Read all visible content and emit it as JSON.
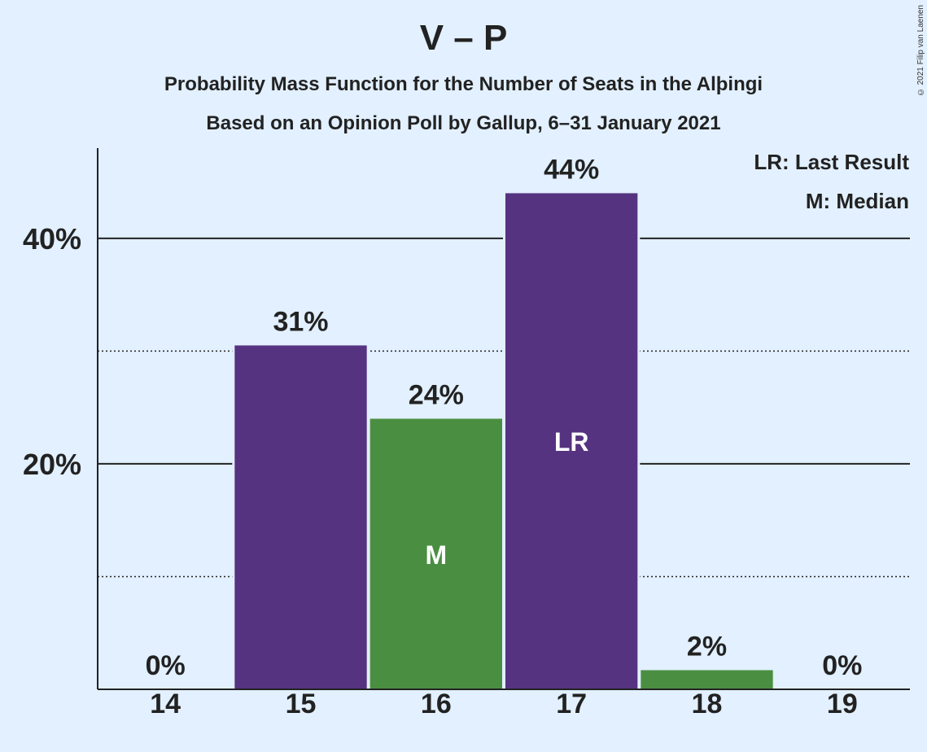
{
  "title": "V – P",
  "subtitle1": "Probability Mass Function for the Number of Seats in the Alþingi",
  "subtitle2": "Based on an Opinion Poll by Gallup, 6–31 January 2021",
  "copyright": "© 2021 Filip van Laenen",
  "legend": {
    "lr": "LR: Last Result",
    "m": "M: Median"
  },
  "colors": {
    "background": "#e2f0ff",
    "purple": "#553380",
    "green": "#4a8f41",
    "text": "#222222"
  },
  "chart_data": {
    "type": "bar",
    "categories": [
      "14",
      "15",
      "16",
      "17",
      "18",
      "19"
    ],
    "values": [
      0,
      30.5,
      24,
      44,
      1.7,
      0
    ],
    "data_labels": [
      "0%",
      "31%",
      "24%",
      "44%",
      "2%",
      "0%"
    ],
    "bar_colors": [
      "purple",
      "purple",
      "green",
      "purple",
      "green",
      "purple"
    ],
    "bar_markers": [
      "",
      "",
      "M",
      "LR",
      "",
      ""
    ],
    "ylim": [
      0,
      48
    ],
    "y_ticks": [
      {
        "value": 20,
        "label": "20%",
        "style": "solid"
      },
      {
        "value": 40,
        "label": "40%",
        "style": "solid"
      }
    ],
    "y_minor_gridlines": [
      10,
      30
    ],
    "xlabel": "",
    "ylabel": ""
  }
}
